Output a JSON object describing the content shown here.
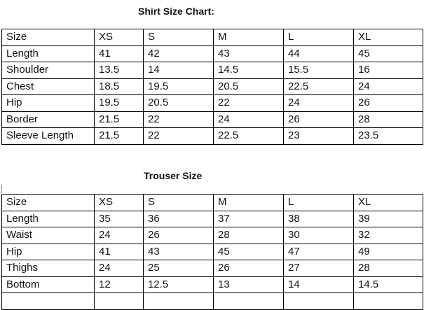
{
  "shirt": {
    "title": "Shirt Size Chart:",
    "header": [
      "Size",
      "XS",
      "S",
      "M",
      "L",
      "XL"
    ],
    "rows": [
      [
        "Length",
        "41",
        "42",
        "43",
        "44",
        "45"
      ],
      [
        "Shoulder",
        "13.5",
        "14",
        "14.5",
        "15.5",
        "16"
      ],
      [
        "Chest",
        "18.5",
        "19.5",
        "20.5",
        "22.5",
        "24"
      ],
      [
        "Hip",
        "19.5",
        "20.5",
        "22",
        "24",
        "26"
      ],
      [
        "Border",
        "21.5",
        "22",
        "24",
        "26",
        "28"
      ],
      [
        "Sleeve Length",
        "21.5",
        "22",
        "22.5",
        "23",
        "23.5"
      ]
    ]
  },
  "trouser": {
    "title": "Trouser Size",
    "header": [
      "Size",
      "XS",
      "S",
      "M",
      "L",
      "XL"
    ],
    "rows": [
      [
        "Length",
        "35",
        "36",
        "37",
        "38",
        "39"
      ],
      [
        "Waist",
        "24",
        "26",
        "28",
        "30",
        "32"
      ],
      [
        "Hip",
        "41",
        "43",
        "45",
        "47",
        "49"
      ],
      [
        "Thighs",
        "24",
        "25",
        "26",
        "27",
        "28"
      ],
      [
        "Bottom",
        "12",
        "12.5",
        "13",
        "14",
        "14.5"
      ],
      [
        "",
        "",
        "",
        "",
        "",
        ""
      ]
    ]
  }
}
